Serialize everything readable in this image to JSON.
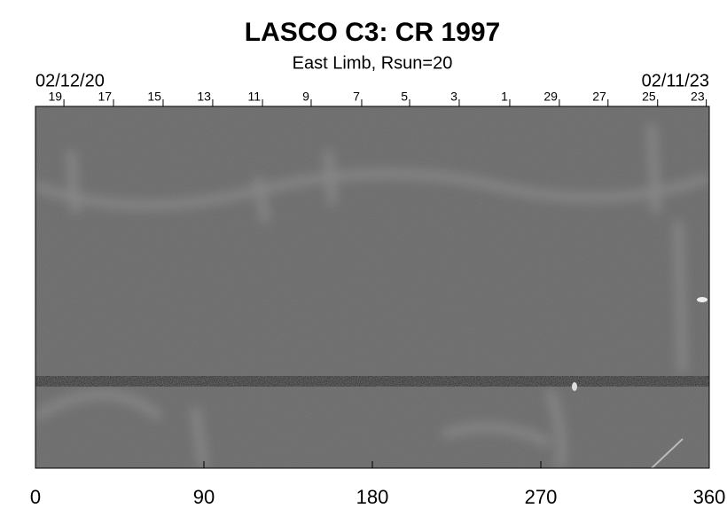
{
  "chart_data": {
    "type": "image",
    "title": "LASCO C3: CR 1997",
    "subtitle": "East Limb, Rsun=20",
    "start_date": "02/12/20",
    "end_date": "02/11/23",
    "xlim": [
      0,
      360
    ],
    "xticks": [
      0,
      90,
      180,
      270,
      360
    ],
    "x2ticks": [
      {
        "value": 15.2,
        "label": "19"
      },
      {
        "value": 41.7,
        "label": "17"
      },
      {
        "value": 68.2,
        "label": "15"
      },
      {
        "value": 94.7,
        "label": "13"
      },
      {
        "value": 121.3,
        "label": "11"
      },
      {
        "value": 147.3,
        "label": "9"
      },
      {
        "value": 174.3,
        "label": "7"
      },
      {
        "value": 199.9,
        "label": "5"
      },
      {
        "value": 226.4,
        "label": "3"
      },
      {
        "value": 253.4,
        "label": "1"
      },
      {
        "value": 279.9,
        "label": "29"
      },
      {
        "value": 305.9,
        "label": "27"
      },
      {
        "value": 332.4,
        "label": "25"
      },
      {
        "value": 358.4,
        "label": "23"
      }
    ]
  }
}
